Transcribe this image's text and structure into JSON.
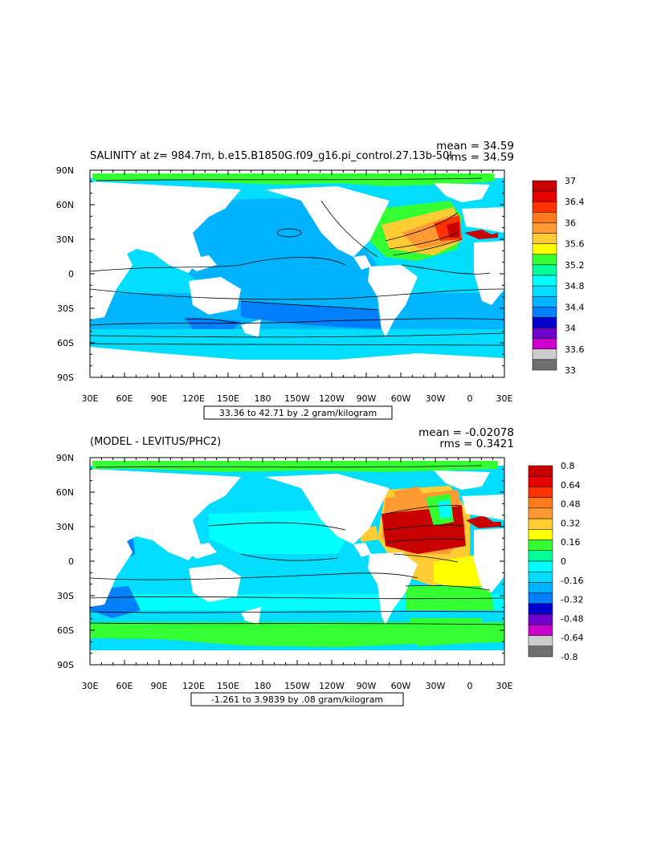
{
  "chart_data": [
    {
      "type": "heatmap",
      "title": "SALINITY at z= 984.7m, b.e15.B1850G.f09_g16.pi_control.27.13b-50l",
      "mean_label": "mean = 34.59",
      "rms_label": "rms = 34.59",
      "xtick_labels": [
        "30E",
        "60E",
        "90E",
        "120E",
        "150E",
        "180",
        "150W",
        "120W",
        "90W",
        "60W",
        "30W",
        "0",
        "30E"
      ],
      "ytick_labels": [
        "90N",
        "60N",
        "30N",
        "0",
        "30S",
        "60S",
        "90S"
      ],
      "range_label": "33.36 to 42.71 by .2 gram/kilogram",
      "colorbar": {
        "labels": [
          "37",
          "36.4",
          "36",
          "35.6",
          "35.2",
          "34.8",
          "34.4",
          "34",
          "33.6",
          "33"
        ],
        "colors": [
          "#c80000",
          "#e60000",
          "#ff3300",
          "#ff7a1a",
          "#ff9933",
          "#ffcc33",
          "#ffff00",
          "#33ff33",
          "#00ff99",
          "#00ffff",
          "#00ddff",
          "#00b3ff",
          "#0080ff",
          "#0000cc",
          "#7000cc",
          "#cc00cc",
          "#cccccc",
          "#707070"
        ]
      },
      "data_range": [
        33.36,
        42.71
      ],
      "contour_interval": 0.2,
      "units": "gram/kilogram"
    },
    {
      "type": "heatmap",
      "title": "(MODEL - LEVITUS/PHC2)",
      "mean_label": "mean = -0.02078",
      "rms_label": "rms = 0.3421",
      "xtick_labels": [
        "30E",
        "60E",
        "90E",
        "120E",
        "150E",
        "180",
        "150W",
        "120W",
        "90W",
        "60W",
        "30W",
        "0",
        "30E"
      ],
      "ytick_labels": [
        "90N",
        "60N",
        "30N",
        "0",
        "30S",
        "60S",
        "90S"
      ],
      "range_label": "-1.261 to 3.9839 by .08 gram/kilogram",
      "colorbar": {
        "labels": [
          "0.8",
          "0.64",
          "0.48",
          "0.32",
          "0.16",
          "0",
          "-0.16",
          "-0.32",
          "-0.48",
          "-0.64",
          "-0.8"
        ],
        "colors": [
          "#c80000",
          "#e60000",
          "#ff3300",
          "#ff7a1a",
          "#ff9933",
          "#ffcc33",
          "#ffff00",
          "#33ff33",
          "#00ff99",
          "#00ffff",
          "#00ddff",
          "#00b3ff",
          "#0080ff",
          "#0000cc",
          "#7000cc",
          "#cc00cc",
          "#cccccc",
          "#707070"
        ]
      },
      "data_range": [
        -1.261,
        3.9839
      ],
      "contour_interval": 0.08,
      "units": "gram/kilogram"
    }
  ]
}
